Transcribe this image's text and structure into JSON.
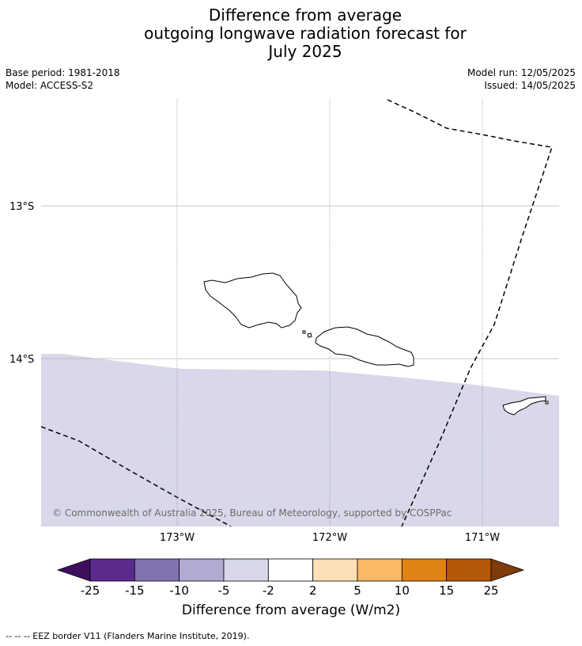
{
  "title": {
    "line1": "Difference from average",
    "line2": "outgoing longwave radiation forecast for",
    "line3": "July 2025"
  },
  "meta": {
    "base_period": "Base period: 1981-2018",
    "model": "Model: ACCESS-S2",
    "model_run": "Model run: 12/05/2025",
    "issued": "Issued: 14/05/2025"
  },
  "map": {
    "lat_labels": [
      "13°S",
      "14°S"
    ],
    "lon_labels": [
      "173°W",
      "172°W",
      "171°W"
    ],
    "anomaly_fill_color": "#d8d8ea",
    "region_anomaly_category": "-5 to -2"
  },
  "credit": "© Commonwealth of Australia 2025, Bureau of Meteorology, supported by COSPPac",
  "colorbar": {
    "ticks": [
      "-25",
      "-15",
      "-10",
      "-5",
      "-2",
      "2",
      "5",
      "10",
      "15",
      "25"
    ],
    "colors": [
      "#5b2a8c",
      "#8172b0",
      "#b2aad2",
      "#d8d8ea",
      "#ffffff",
      "#fee0b6",
      "#fdb863",
      "#e08214",
      "#b35806"
    ],
    "under_color": "#3f0f5e",
    "over_color": "#7f3b08",
    "label": "Difference from average (W/m2)"
  },
  "footer": "--  --  -- EEZ border V11 (Flanders Marine Institute, 2019)."
}
